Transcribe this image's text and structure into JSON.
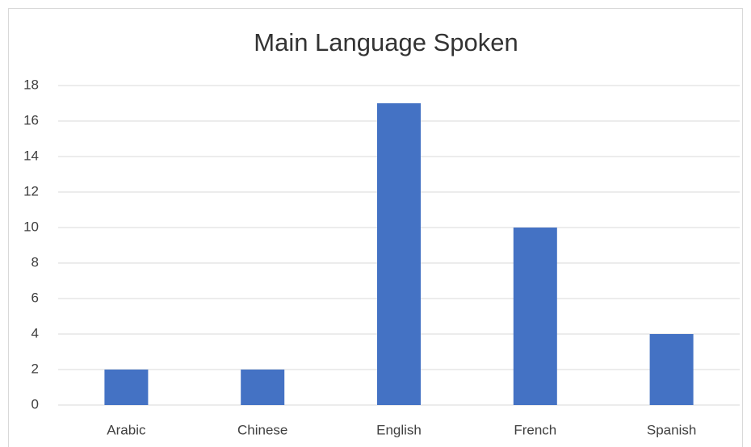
{
  "chart_data": {
    "type": "bar",
    "title": "Main Language Spoken",
    "categories": [
      "Arabic",
      "Chinese",
      "English",
      "French",
      "Spanish"
    ],
    "values": [
      2,
      2,
      17,
      10,
      4
    ],
    "color": "#4472c4",
    "ylim": [
      0,
      18
    ],
    "yticks": [
      0,
      2,
      4,
      6,
      8,
      10,
      12,
      14,
      16,
      18
    ],
    "grid": true
  }
}
